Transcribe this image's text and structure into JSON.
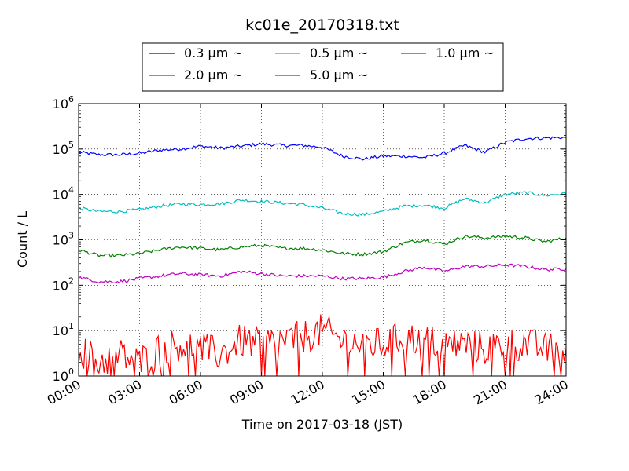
{
  "chart_data": {
    "type": "line",
    "title": "kc01e_20170318.txt",
    "xlabel": "Time on 2017-03-18 (JST)",
    "ylabel": "Count / L",
    "yscale": "log",
    "ylim": [
      1,
      1000000
    ],
    "xlim": [
      "00:00",
      "24:00"
    ],
    "x_ticks": [
      "00:00",
      "03:00",
      "06:00",
      "09:00",
      "12:00",
      "15:00",
      "18:00",
      "21:00",
      "24:00"
    ],
    "y_ticks": [
      {
        "base": "10",
        "exp": "0"
      },
      {
        "base": "10",
        "exp": "1"
      },
      {
        "base": "10",
        "exp": "2"
      },
      {
        "base": "10",
        "exp": "3"
      },
      {
        "base": "10",
        "exp": "4"
      },
      {
        "base": "10",
        "exp": "5"
      },
      {
        "base": "10",
        "exp": "6"
      }
    ],
    "grid": true,
    "legend_position": "top-center",
    "x": [
      "00:00",
      "01:00",
      "02:00",
      "03:00",
      "04:00",
      "05:00",
      "06:00",
      "07:00",
      "08:00",
      "09:00",
      "10:00",
      "11:00",
      "12:00",
      "13:00",
      "14:00",
      "15:00",
      "16:00",
      "17:00",
      "18:00",
      "19:00",
      "20:00",
      "21:00",
      "22:00",
      "23:00",
      "24:00"
    ],
    "series": [
      {
        "name": "0.3 μm ~",
        "color": "#0000ff",
        "values": [
          85000,
          75000,
          75000,
          80000,
          95000,
          100000,
          115000,
          105000,
          115000,
          130000,
          120000,
          120000,
          110000,
          70000,
          60000,
          70000,
          70000,
          65000,
          80000,
          120000,
          85000,
          140000,
          170000,
          175000,
          180000
        ]
      },
      {
        "name": "0.5 μm ~",
        "color": "#00bfbf",
        "values": [
          5000,
          4200,
          4200,
          4600,
          5500,
          6200,
          6000,
          6200,
          7500,
          7000,
          6500,
          6000,
          5000,
          3800,
          3600,
          4200,
          5500,
          5800,
          5000,
          8000,
          6500,
          10000,
          11000,
          9500,
          10500
        ]
      },
      {
        "name": "1.0 μm ~",
        "color": "#008000",
        "values": [
          600,
          450,
          450,
          500,
          600,
          700,
          650,
          600,
          700,
          750,
          650,
          650,
          600,
          500,
          480,
          550,
          850,
          1000,
          800,
          1200,
          1100,
          1200,
          1100,
          900,
          1100
        ]
      },
      {
        "name": "2.0 μm ~",
        "color": "#bf00bf",
        "values": [
          150,
          120,
          120,
          140,
          160,
          180,
          170,
          160,
          200,
          180,
          160,
          160,
          160,
          140,
          140,
          150,
          200,
          250,
          200,
          260,
          260,
          280,
          260,
          220,
          230
        ]
      },
      {
        "name": "5.0 μm ~",
        "color": "#ff0000",
        "values": [
          4,
          2,
          3,
          2,
          4,
          5,
          4,
          3,
          6,
          5,
          6,
          7,
          10,
          6,
          5,
          5,
          7,
          6,
          5,
          5,
          4,
          5,
          5,
          4,
          4
        ]
      }
    ]
  }
}
